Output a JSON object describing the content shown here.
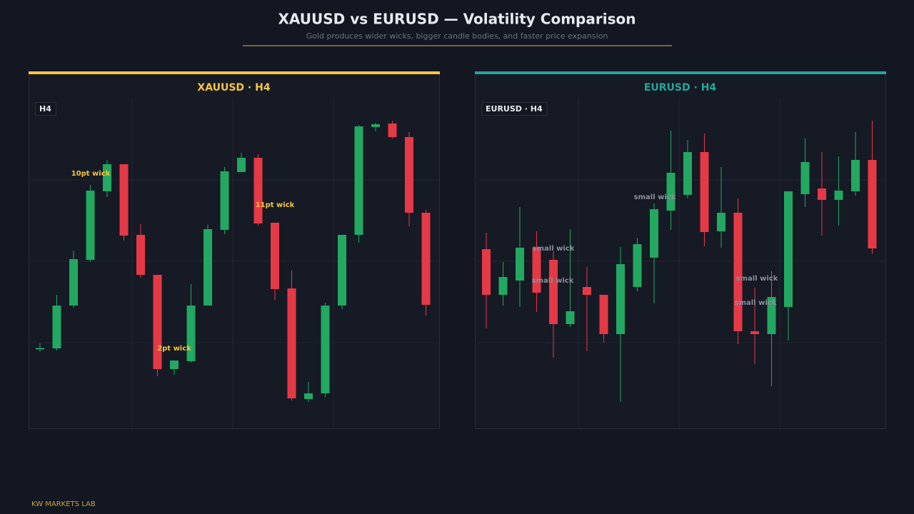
{
  "header": {
    "title": "XAUUSD vs EURUSD — Volatility Comparison",
    "subtitle": "Gold produces wider wicks, bigger candle bodies, and faster price expansion"
  },
  "footer": "KW MARKETS LAB",
  "chart_data": [
    {
      "type": "candlestick",
      "title": "XAUUSD · H4",
      "badge": "H4",
      "accent": "#f5c542",
      "up_color": "#22a861",
      "down_color": "#e63946",
      "annotation_color": "#f5c542",
      "grid": true,
      "ylim": [
        0,
        463
      ],
      "open": [
        111.5,
        112,
        172,
        236,
        332,
        370,
        271,
        215,
        83,
        94,
        172,
        278,
        359,
        379,
        288,
        196,
        41,
        49,
        172,
        271,
        422,
        427,
        408,
        302
      ],
      "high": [
        119,
        187,
        249,
        341,
        376,
        370,
        286,
        215,
        95,
        202,
        285,
        366,
        386,
        384,
        288,
        221,
        65,
        176,
        271,
        425,
        428,
        431,
        415,
        306
      ],
      "low": [
        107,
        109,
        169,
        233,
        324,
        263,
        211,
        73,
        75,
        92,
        172,
        272,
        359,
        284,
        180,
        39,
        37,
        44,
        167,
        260,
        416,
        406,
        283,
        158
      ],
      "close": [
        112.5,
        172,
        237,
        333,
        370,
        270,
        215,
        83,
        95,
        172,
        279,
        360,
        379,
        287,
        195,
        42,
        49,
        172,
        271,
        423,
        426,
        408,
        302,
        173
      ],
      "annotations": [
        "10pt wick",
        "11pt wick",
        "2pt wick"
      ]
    },
    {
      "type": "candlestick",
      "title": "EURUSD · H4",
      "badge": "EURUSD · H4",
      "accent": "#26a69a",
      "up_color": "#22a861",
      "down_color": "#e63946",
      "annotation_color": "#8a8f99",
      "grid": true,
      "ylim": [
        0,
        463
      ],
      "open": [
        251,
        187,
        207,
        253,
        236,
        146,
        198,
        187,
        132,
        198,
        239,
        305,
        327,
        387,
        276,
        302,
        136,
        132,
        170,
        328,
        336,
        320,
        332,
        376
      ],
      "high": [
        274,
        233,
        310,
        276,
        248,
        279,
        226,
        187,
        254,
        267,
        315,
        417,
        404,
        413,
        366,
        322,
        197,
        220,
        332,
        406,
        387,
        381,
        415,
        431
      ],
      "low": [
        140,
        172,
        170,
        163,
        99,
        142,
        108,
        120,
        37,
        192,
        175,
        278,
        322,
        255,
        253,
        118,
        90,
        59,
        123,
        310,
        270,
        284,
        326,
        244
      ],
      "close": [
        187,
        212,
        253,
        190,
        146,
        164,
        187,
        132,
        230,
        258,
        307,
        358,
        387,
        275,
        302,
        136,
        132,
        184,
        332,
        373,
        320,
        333,
        376,
        252
      ],
      "annotations": [
        "small wick",
        "small wick",
        "small wick",
        "small wick",
        "small wick"
      ]
    }
  ]
}
